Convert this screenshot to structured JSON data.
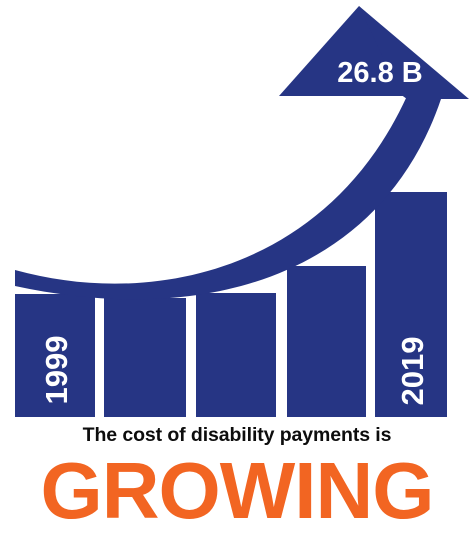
{
  "graphic": {
    "arrow_value": "26.8 B",
    "start_year": "1999",
    "end_year": "2019",
    "bar_color": "#263584",
    "label_color": "#ffffff"
  },
  "caption": "The cost of disability payments is",
  "headline": "GROWING",
  "headline_color": "#f26522"
}
